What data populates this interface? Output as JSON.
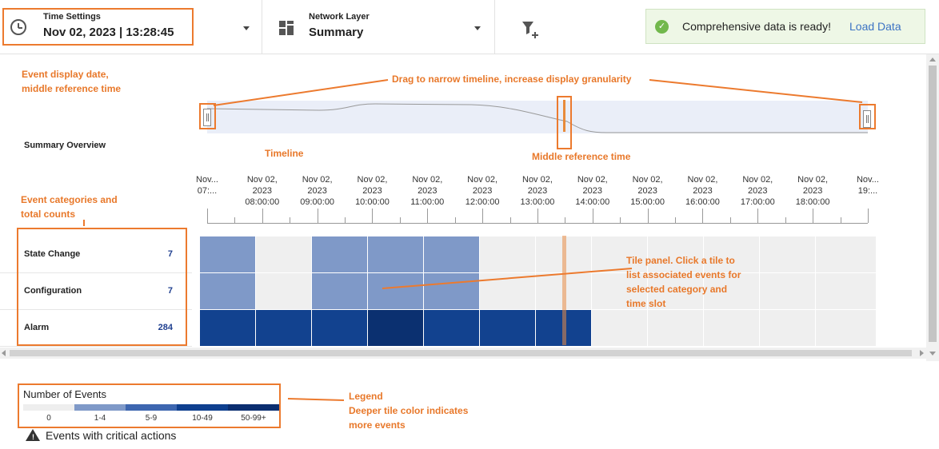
{
  "header": {
    "time_label": "Time Settings",
    "time_value": "Nov 02, 2023 | 13:28:45",
    "layer_label": "Network Layer",
    "layer_value": "Summary",
    "filter_icon": "filter-add-icon"
  },
  "toast": {
    "message": "Comprehensive data is ready!",
    "action": "Load Data",
    "icon": "check-circle-icon",
    "color": "#72b84c"
  },
  "overview": {
    "label": "Summary Overview"
  },
  "timeline": {
    "ticks": [
      {
        "d": "Nov...",
        "t": "07:..."
      },
      {
        "d": "Nov 02,",
        "y": "2023",
        "t": "08:00:00"
      },
      {
        "d": "Nov 02,",
        "y": "2023",
        "t": "09:00:00"
      },
      {
        "d": "Nov 02,",
        "y": "2023",
        "t": "10:00:00"
      },
      {
        "d": "Nov 02,",
        "y": "2023",
        "t": "11:00:00"
      },
      {
        "d": "Nov 02,",
        "y": "2023",
        "t": "12:00:00"
      },
      {
        "d": "Nov 02,",
        "y": "2023",
        "t": "13:00:00"
      },
      {
        "d": "Nov 02,",
        "y": "2023",
        "t": "14:00:00"
      },
      {
        "d": "Nov 02,",
        "y": "2023",
        "t": "15:00:00"
      },
      {
        "d": "Nov 02,",
        "y": "2023",
        "t": "16:00:00"
      },
      {
        "d": "Nov 02,",
        "y": "2023",
        "t": "17:00:00"
      },
      {
        "d": "Nov 02,",
        "y": "2023",
        "t": "18:00:00"
      },
      {
        "d": "Nov...",
        "t": "19:..."
      }
    ]
  },
  "categories": [
    {
      "name": "State Change",
      "count": "7",
      "levels": [
        1,
        0,
        1,
        1,
        1,
        0,
        0,
        0,
        0,
        0,
        0,
        0
      ]
    },
    {
      "name": "Configuration",
      "count": "7",
      "levels": [
        1,
        0,
        1,
        1,
        1,
        0,
        0,
        0,
        0,
        0,
        0,
        0
      ]
    },
    {
      "name": "Alarm",
      "count": "284",
      "levels": [
        3,
        3,
        3,
        4,
        3,
        3,
        3,
        0,
        0,
        0,
        0,
        0
      ]
    }
  ],
  "legend": {
    "title": "Number of Events",
    "bins": [
      {
        "label": "0",
        "color": "#eeeeee"
      },
      {
        "label": "1-4",
        "color": "#7f99c8"
      },
      {
        "label": "5-9",
        "color": "#3d66b0"
      },
      {
        "label": "10-49",
        "color": "#0e3f8f"
      },
      {
        "label": "50-99+",
        "color": "#0b2e70"
      }
    ],
    "warning": "Events with critical actions"
  },
  "annotations": {
    "display_date": [
      "Event display date,",
      "middle reference time"
    ],
    "drag": "Drag to narrow timeline, increase display granularity",
    "timeline": "Timeline",
    "middle_ref": "Middle reference time",
    "categories": [
      "Event categories and",
      "total counts"
    ],
    "tile_panel": [
      "Tile panel. Click a tile to",
      "list associated events for",
      "selected category and",
      "time slot"
    ],
    "legend": [
      "Legend",
      "Deeper tile color indicates",
      "more events"
    ]
  }
}
